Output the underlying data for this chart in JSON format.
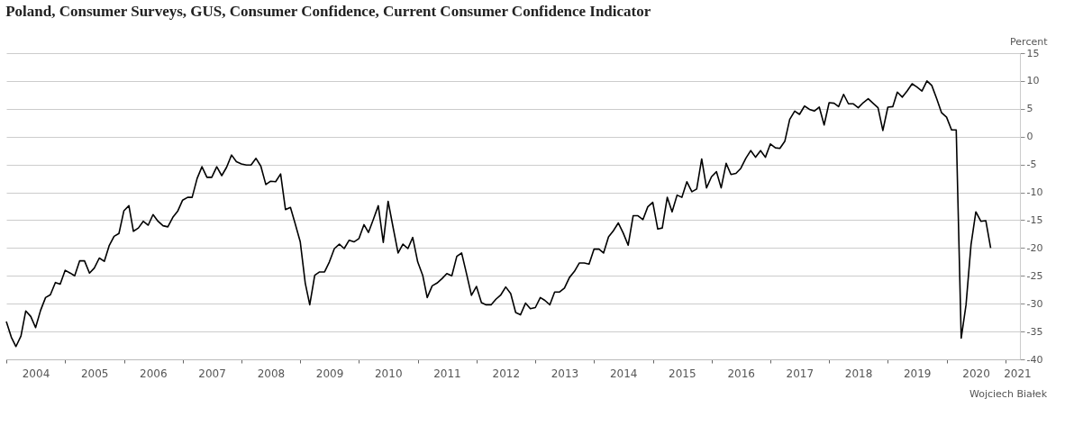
{
  "chart_data": {
    "type": "line",
    "title": "Poland, Consumer Surveys, GUS, Consumer Confidence, Current Consumer Confidence Indicator",
    "ylabel": "Percent",
    "annotations": [
      "Wojciech Białek"
    ],
    "x": [
      "2004-01",
      "2004-02",
      "2004-03",
      "2004-04",
      "2004-05",
      "2004-06",
      "2004-07",
      "2004-08",
      "2004-09",
      "2004-10",
      "2004-11",
      "2004-12",
      "2005-01",
      "2005-02",
      "2005-03",
      "2005-04",
      "2005-05",
      "2005-06",
      "2005-07",
      "2005-08",
      "2005-09",
      "2005-10",
      "2005-11",
      "2005-12",
      "2006-01",
      "2006-02",
      "2006-03",
      "2006-04",
      "2006-05",
      "2006-06",
      "2006-07",
      "2006-08",
      "2006-09",
      "2006-10",
      "2006-11",
      "2006-12",
      "2007-01",
      "2007-02",
      "2007-03",
      "2007-04",
      "2007-05",
      "2007-06",
      "2007-07",
      "2007-08",
      "2007-09",
      "2007-10",
      "2007-11",
      "2007-12",
      "2008-01",
      "2008-02",
      "2008-03",
      "2008-04",
      "2008-05",
      "2008-06",
      "2008-07",
      "2008-08",
      "2008-09",
      "2008-10",
      "2008-11",
      "2008-12",
      "2009-01",
      "2009-02",
      "2009-03",
      "2009-04",
      "2009-05",
      "2009-06",
      "2009-07",
      "2009-08",
      "2009-09",
      "2009-10",
      "2009-11",
      "2009-12",
      "2010-01",
      "2010-02",
      "2010-03",
      "2010-04",
      "2010-05",
      "2010-06",
      "2010-07",
      "2010-08",
      "2010-09",
      "2010-10",
      "2010-11",
      "2010-12",
      "2011-01",
      "2011-02",
      "2011-03",
      "2011-04",
      "2011-05",
      "2011-06",
      "2011-07",
      "2011-08",
      "2011-09",
      "2011-10",
      "2011-11",
      "2011-12",
      "2012-01",
      "2012-02",
      "2012-03",
      "2012-04",
      "2012-05",
      "2012-06",
      "2012-07",
      "2012-08",
      "2012-09",
      "2012-10",
      "2012-11",
      "2012-12",
      "2013-01",
      "2013-02",
      "2013-03",
      "2013-04",
      "2013-05",
      "2013-06",
      "2013-07",
      "2013-08",
      "2013-09",
      "2013-10",
      "2013-11",
      "2013-12",
      "2014-01",
      "2014-02",
      "2014-03",
      "2014-04",
      "2014-05",
      "2014-06",
      "2014-07",
      "2014-08",
      "2014-09",
      "2014-10",
      "2014-11",
      "2014-12",
      "2015-01",
      "2015-02",
      "2015-03",
      "2015-04",
      "2015-05",
      "2015-06",
      "2015-07",
      "2015-08",
      "2015-09",
      "2015-10",
      "2015-11",
      "2015-12",
      "2016-01",
      "2016-02",
      "2016-03",
      "2016-04",
      "2016-05",
      "2016-06",
      "2016-07",
      "2016-08",
      "2016-09",
      "2016-10",
      "2016-11",
      "2016-12",
      "2017-01",
      "2017-02",
      "2017-03",
      "2017-04",
      "2017-05",
      "2017-06",
      "2017-07",
      "2017-08",
      "2017-09",
      "2017-10",
      "2017-11",
      "2017-12",
      "2018-01",
      "2018-02",
      "2018-03",
      "2018-04",
      "2018-05",
      "2018-06",
      "2018-07",
      "2018-08",
      "2018-09",
      "2018-10",
      "2018-11",
      "2018-12",
      "2019-01",
      "2019-02",
      "2019-03",
      "2019-04",
      "2019-05",
      "2019-06",
      "2019-07",
      "2019-08",
      "2019-09",
      "2019-10",
      "2019-11",
      "2019-12",
      "2020-01",
      "2020-02",
      "2020-03",
      "2020-04",
      "2020-05",
      "2020-06",
      "2020-07",
      "2020-08",
      "2020-09",
      "2020-10"
    ],
    "series": [
      {
        "color": "#000000",
        "values": [
          -33.2,
          -36.0,
          -37.7,
          -35.8,
          -31.3,
          -32.3,
          -34.3,
          -31.2,
          -28.9,
          -28.4,
          -26.2,
          -26.5,
          -24.0,
          -24.5,
          -25.0,
          -22.3,
          -22.3,
          -24.5,
          -23.6,
          -21.8,
          -22.4,
          -19.6,
          -17.9,
          -17.4,
          -13.3,
          -12.4,
          -17.0,
          -16.4,
          -15.2,
          -15.9,
          -14.0,
          -15.2,
          -16.0,
          -16.2,
          -14.5,
          -13.4,
          -11.4,
          -10.9,
          -10.9,
          -7.5,
          -5.4,
          -7.3,
          -7.3,
          -5.4,
          -7.0,
          -5.5,
          -3.3,
          -4.5,
          -4.9,
          -5.1,
          -5.1,
          -3.9,
          -5.3,
          -8.6,
          -8.0,
          -8.1,
          -6.7,
          -13.1,
          -12.7,
          -15.7,
          -18.9,
          -26.3,
          -30.2,
          -24.9,
          -24.3,
          -24.3,
          -22.5,
          -20.1,
          -19.3,
          -20.1,
          -18.6,
          -18.9,
          -18.3,
          -15.8,
          -17.2,
          -14.8,
          -12.4,
          -19.0,
          -11.6,
          -16.3,
          -20.9,
          -19.3,
          -20.1,
          -18.1,
          -22.5,
          -24.9,
          -28.9,
          -26.8,
          -26.3,
          -25.5,
          -24.6,
          -25.0,
          -21.5,
          -20.9,
          -24.7,
          -28.5,
          -26.9,
          -29.8,
          -30.2,
          -30.2,
          -29.2,
          -28.4,
          -27.0,
          -28.2,
          -31.6,
          -32.0,
          -29.9,
          -30.9,
          -30.7,
          -28.9,
          -29.4,
          -30.2,
          -27.9,
          -27.9,
          -27.2,
          -25.3,
          -24.2,
          -22.7,
          -22.7,
          -22.9,
          -20.2,
          -20.2,
          -20.9,
          -18.0,
          -16.9,
          -15.5,
          -17.3,
          -19.5,
          -14.2,
          -14.2,
          -14.9,
          -12.6,
          -11.8,
          -16.6,
          -16.4,
          -10.9,
          -13.5,
          -10.5,
          -10.9,
          -8.1,
          -9.9,
          -9.4,
          -4.0,
          -9.2,
          -7.2,
          -6.3,
          -9.2,
          -4.8,
          -6.8,
          -6.6,
          -5.7,
          -3.9,
          -2.5,
          -3.7,
          -2.5,
          -3.7,
          -1.3,
          -2.0,
          -2.1,
          -0.8,
          3.1,
          4.6,
          4.0,
          5.5,
          4.9,
          4.6,
          5.3,
          2.1,
          6.1,
          6.0,
          5.4,
          7.6,
          5.9,
          5.9,
          5.2,
          6.1,
          6.8,
          6.0,
          5.2,
          1.1,
          5.3,
          5.4,
          8.0,
          7.1,
          8.2,
          9.5,
          8.9,
          8.2,
          10.0,
          9.2,
          6.8,
          4.3,
          3.5,
          1.2,
          1.2,
          -36.2,
          -30.2,
          -19.4,
          -13.5,
          -15.2,
          -15.1,
          -20.0
        ]
      }
    ],
    "xlim": [
      "2004-01-01",
      "2021-04-01"
    ],
    "xticks": [
      {
        "value": "2004-01-01",
        "label": null
      },
      {
        "value": "2005-01-01",
        "label": null
      },
      {
        "value": "2006-01-01",
        "label": null
      },
      {
        "value": "2007-01-01",
        "label": null
      },
      {
        "value": "2008-01-01",
        "label": null
      },
      {
        "value": "2009-01-01",
        "label": null
      },
      {
        "value": "2010-01-01",
        "label": null
      },
      {
        "value": "2011-01-01",
        "label": null
      },
      {
        "value": "2012-01-01",
        "label": null
      },
      {
        "value": "2013-01-01",
        "label": null
      },
      {
        "value": "2014-01-01",
        "label": null
      },
      {
        "value": "2015-01-01",
        "label": null
      },
      {
        "value": "2016-01-01",
        "label": null
      },
      {
        "value": "2017-01-01",
        "label": null
      },
      {
        "value": "2018-01-01",
        "label": null
      },
      {
        "value": "2019-01-01",
        "label": null
      },
      {
        "value": "2020-01-01",
        "label": null
      },
      {
        "value": "2021-01-01",
        "label": null
      },
      {
        "value": "2004-07-01",
        "label": "2004"
      },
      {
        "value": "2005-07-01",
        "label": "2005"
      },
      {
        "value": "2006-07-01",
        "label": "2006"
      },
      {
        "value": "2007-07-01",
        "label": "2007"
      },
      {
        "value": "2008-07-01",
        "label": "2008"
      },
      {
        "value": "2009-07-01",
        "label": "2009"
      },
      {
        "value": "2010-07-01",
        "label": "2010"
      },
      {
        "value": "2011-07-01",
        "label": "2011"
      },
      {
        "value": "2012-07-01",
        "label": "2012"
      },
      {
        "value": "2013-07-01",
        "label": "2013"
      },
      {
        "value": "2014-07-01",
        "label": "2014"
      },
      {
        "value": "2015-07-01",
        "label": "2015"
      },
      {
        "value": "2016-07-01",
        "label": "2016"
      },
      {
        "value": "2017-07-01",
        "label": "2017"
      },
      {
        "value": "2018-07-01",
        "label": "2018"
      },
      {
        "value": "2019-07-01",
        "label": "2019"
      },
      {
        "value": "2020-07-01",
        "label": "2020"
      },
      {
        "value": "2021-03-15",
        "label": "2021"
      }
    ],
    "ylim": [
      -40,
      15
    ],
    "yticks": [
      -40,
      -35,
      -30,
      -25,
      -20,
      -15,
      -10,
      -5,
      0,
      5,
      10,
      15
    ],
    "grid": "y",
    "marker": "none",
    "line_style": "solid"
  }
}
